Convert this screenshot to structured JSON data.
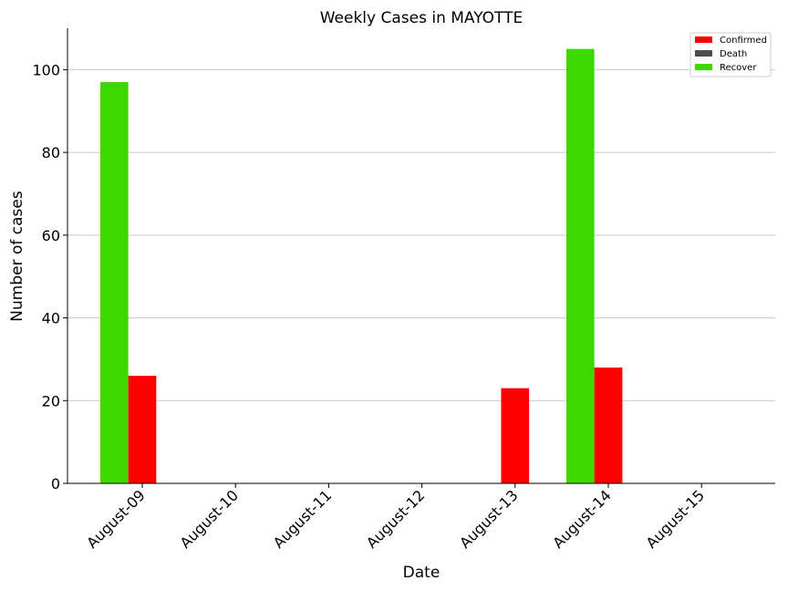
{
  "chart_data": {
    "type": "bar",
    "title": "Weekly Cases in MAYOTTE",
    "xlabel": "Date",
    "ylabel": "Number of cases",
    "categories": [
      "August-09",
      "August-10",
      "August-11",
      "August-12",
      "August-13",
      "August-14",
      "August-15"
    ],
    "series": [
      {
        "name": "Recover",
        "color": "#3dd800",
        "values": [
          97,
          0,
          0,
          0,
          0,
          105,
          0
        ]
      },
      {
        "name": "Confirmed",
        "color": "#ff0000",
        "values": [
          26,
          0,
          0,
          0,
          23,
          28,
          0
        ]
      },
      {
        "name": "Death",
        "color": "#4d4d4d",
        "values": [
          0,
          0,
          0,
          0,
          0,
          0,
          0
        ]
      }
    ],
    "legend": {
      "placement": "top-right",
      "order": [
        "Confirmed",
        "Death",
        "Recover"
      ]
    },
    "yticks": [
      0,
      20,
      40,
      60,
      80,
      100
    ],
    "ylim": [
      0,
      110
    ],
    "grid": "horizontal"
  }
}
